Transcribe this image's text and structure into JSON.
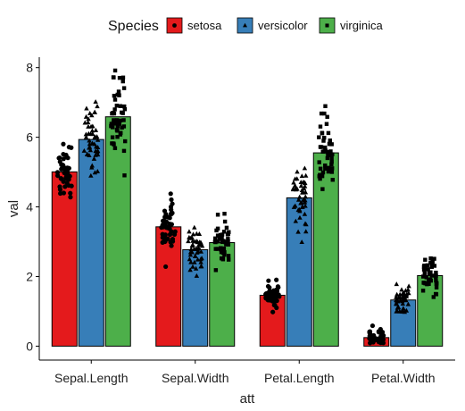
{
  "chart_data": {
    "type": "bar",
    "xlabel": "att",
    "ylabel": "val",
    "ylim": [
      -0.4,
      8.3
    ],
    "yticks": [
      0,
      2,
      4,
      6,
      8
    ],
    "categories": [
      "Sepal.Length",
      "Sepal.Width",
      "Petal.Length",
      "Petal.Width"
    ],
    "legend": {
      "title": "Species",
      "position": "top"
    },
    "series": [
      {
        "name": "setosa",
        "color": "#E41A1C",
        "marker": "circle",
        "values": [
          5.006,
          3.428,
          1.462,
          0.246
        ]
      },
      {
        "name": "versicolor",
        "color": "#377EB8",
        "marker": "triangle",
        "values": [
          5.936,
          2.77,
          4.26,
          1.326
        ]
      },
      {
        "name": "virginica",
        "color": "#4DAF4A",
        "marker": "square",
        "values": [
          6.588,
          2.974,
          5.552,
          2.026
        ]
      }
    ],
    "points_note": "jittered individual observations overlaid on each bar",
    "points": {
      "setosa": [
        [
          5.1,
          4.9,
          4.7,
          4.6,
          5.0,
          5.4,
          4.6,
          5.0,
          4.4,
          4.9,
          5.4,
          4.8,
          4.8,
          4.3,
          5.8,
          5.7,
          5.4,
          5.1,
          5.7,
          5.1,
          5.4,
          5.1,
          4.6,
          5.1,
          4.8,
          5.0,
          5.0,
          5.2,
          5.2,
          4.7,
          4.8,
          5.4,
          5.2,
          5.5,
          4.9,
          5.0,
          5.5,
          4.9,
          4.4,
          5.1,
          5.0,
          4.5,
          4.4,
          5.0,
          5.1,
          4.8,
          5.1,
          4.6,
          5.3,
          5.0
        ],
        [
          3.5,
          3.0,
          3.2,
          3.1,
          3.6,
          3.9,
          3.4,
          3.4,
          2.9,
          3.1,
          3.7,
          3.4,
          3.0,
          3.0,
          4.0,
          4.4,
          3.9,
          3.5,
          3.8,
          3.8,
          3.4,
          3.7,
          3.6,
          3.3,
          3.4,
          3.0,
          3.4,
          3.5,
          3.4,
          3.2,
          3.1,
          3.4,
          4.1,
          4.2,
          3.1,
          3.2,
          3.5,
          3.6,
          3.0,
          3.4,
          3.5,
          2.3,
          3.2,
          3.5,
          3.8,
          3.0,
          3.8,
          3.2,
          3.7,
          3.3
        ],
        [
          1.4,
          1.4,
          1.3,
          1.5,
          1.4,
          1.7,
          1.4,
          1.5,
          1.4,
          1.5,
          1.5,
          1.6,
          1.4,
          1.1,
          1.2,
          1.5,
          1.3,
          1.4,
          1.7,
          1.5,
          1.7,
          1.5,
          1.0,
          1.7,
          1.9,
          1.6,
          1.6,
          1.5,
          1.4,
          1.6,
          1.6,
          1.5,
          1.5,
          1.4,
          1.5,
          1.2,
          1.3,
          1.4,
          1.3,
          1.5,
          1.3,
          1.3,
          1.3,
          1.6,
          1.9,
          1.4,
          1.6,
          1.4,
          1.5,
          1.4
        ],
        [
          0.2,
          0.2,
          0.2,
          0.2,
          0.2,
          0.4,
          0.3,
          0.2,
          0.2,
          0.1,
          0.2,
          0.2,
          0.1,
          0.1,
          0.2,
          0.4,
          0.4,
          0.3,
          0.3,
          0.3,
          0.2,
          0.4,
          0.2,
          0.5,
          0.2,
          0.2,
          0.4,
          0.2,
          0.2,
          0.2,
          0.2,
          0.4,
          0.1,
          0.2,
          0.2,
          0.2,
          0.2,
          0.1,
          0.2,
          0.2,
          0.3,
          0.3,
          0.2,
          0.6,
          0.4,
          0.3,
          0.2,
          0.2,
          0.2,
          0.2
        ]
      ],
      "versicolor": [
        [
          7.0,
          6.4,
          6.9,
          5.5,
          6.5,
          5.7,
          6.3,
          4.9,
          6.6,
          5.2,
          5.0,
          5.9,
          6.0,
          6.1,
          5.6,
          6.7,
          5.6,
          5.8,
          6.2,
          5.6,
          5.9,
          6.1,
          6.3,
          6.1,
          6.4,
          6.6,
          6.8,
          6.7,
          6.0,
          5.7,
          5.5,
          5.5,
          5.8,
          6.0,
          5.4,
          6.0,
          6.7,
          6.3,
          5.6,
          5.5,
          5.5,
          6.1,
          5.8,
          5.0,
          5.6,
          5.7,
          5.7,
          6.2,
          5.1,
          5.7
        ],
        [
          3.2,
          3.2,
          3.1,
          2.3,
          2.8,
          2.8,
          3.3,
          2.4,
          2.9,
          2.7,
          2.0,
          3.0,
          2.2,
          2.9,
          2.9,
          3.1,
          3.0,
          2.7,
          2.2,
          2.5,
          3.2,
          2.8,
          2.5,
          2.8,
          2.9,
          3.0,
          2.8,
          3.0,
          2.9,
          2.6,
          2.4,
          2.4,
          2.7,
          2.7,
          3.0,
          3.4,
          3.1,
          2.3,
          3.0,
          2.5,
          2.6,
          3.0,
          2.6,
          2.3,
          2.7,
          3.0,
          2.9,
          2.9,
          2.5,
          2.8
        ],
        [
          4.7,
          4.5,
          4.9,
          4.0,
          4.6,
          4.5,
          4.7,
          3.3,
          4.6,
          3.9,
          3.5,
          4.2,
          4.0,
          4.7,
          3.6,
          4.4,
          4.5,
          4.1,
          4.5,
          3.9,
          4.8,
          4.0,
          4.9,
          4.7,
          4.3,
          4.4,
          4.8,
          5.0,
          4.5,
          3.5,
          3.8,
          3.7,
          3.9,
          5.1,
          4.5,
          4.5,
          4.7,
          4.4,
          4.1,
          4.0,
          4.4,
          4.6,
          4.0,
          3.3,
          4.2,
          4.2,
          4.2,
          4.3,
          3.0,
          4.1
        ],
        [
          1.4,
          1.5,
          1.5,
          1.3,
          1.5,
          1.3,
          1.6,
          1.0,
          1.3,
          1.4,
          1.0,
          1.5,
          1.0,
          1.4,
          1.3,
          1.4,
          1.5,
          1.0,
          1.5,
          1.1,
          1.8,
          1.3,
          1.5,
          1.2,
          1.3,
          1.4,
          1.4,
          1.7,
          1.5,
          1.0,
          1.1,
          1.0,
          1.2,
          1.6,
          1.5,
          1.6,
          1.5,
          1.3,
          1.3,
          1.3,
          1.2,
          1.4,
          1.2,
          1.0,
          1.3,
          1.2,
          1.3,
          1.3,
          1.1,
          1.3
        ]
      ],
      "virginica": [
        [
          6.3,
          5.8,
          7.1,
          6.3,
          6.5,
          7.6,
          4.9,
          7.3,
          6.7,
          7.2,
          6.5,
          6.4,
          6.8,
          5.7,
          5.8,
          6.4,
          6.5,
          7.7,
          7.7,
          6.0,
          6.9,
          5.6,
          7.7,
          6.3,
          6.7,
          7.2,
          6.2,
          6.1,
          6.4,
          7.2,
          7.4,
          7.9,
          6.4,
          6.3,
          6.1,
          7.7,
          6.3,
          6.4,
          6.0,
          6.9,
          6.7,
          6.9,
          5.8,
          6.8,
          6.7,
          6.7,
          6.3,
          6.5,
          6.2,
          5.9
        ],
        [
          3.3,
          2.7,
          3.0,
          2.9,
          3.0,
          3.0,
          2.5,
          2.9,
          2.5,
          3.6,
          3.2,
          2.7,
          3.0,
          2.5,
          2.8,
          3.2,
          3.0,
          3.8,
          2.6,
          2.2,
          3.2,
          2.8,
          2.8,
          2.7,
          3.3,
          3.2,
          2.8,
          3.0,
          2.8,
          3.0,
          2.8,
          3.8,
          2.8,
          2.8,
          2.6,
          3.0,
          3.4,
          3.1,
          3.0,
          3.1,
          3.1,
          3.1,
          2.7,
          3.2,
          3.3,
          3.0,
          2.5,
          3.0,
          3.4,
          3.0
        ],
        [
          6.0,
          5.1,
          5.9,
          5.6,
          5.8,
          6.6,
          4.5,
          6.3,
          5.8,
          6.1,
          5.1,
          5.3,
          5.5,
          5.0,
          5.1,
          5.3,
          5.5,
          6.7,
          6.9,
          5.0,
          5.7,
          4.9,
          6.7,
          4.9,
          5.7,
          6.0,
          4.8,
          4.9,
          5.6,
          5.8,
          6.1,
          6.4,
          5.6,
          5.1,
          5.6,
          6.1,
          5.6,
          5.5,
          4.8,
          5.4,
          5.6,
          5.1,
          5.1,
          5.9,
          5.7,
          5.2,
          5.0,
          5.2,
          5.4,
          5.1
        ],
        [
          2.5,
          1.9,
          2.1,
          1.8,
          2.2,
          2.1,
          1.7,
          1.8,
          1.8,
          2.5,
          2.0,
          1.9,
          2.1,
          2.0,
          2.4,
          2.3,
          1.8,
          2.2,
          2.3,
          1.5,
          2.3,
          2.0,
          2.0,
          1.8,
          2.1,
          1.8,
          1.8,
          1.8,
          2.1,
          1.6,
          1.9,
          2.0,
          2.2,
          1.5,
          1.4,
          2.3,
          2.4,
          1.8,
          1.8,
          2.1,
          2.4,
          2.3,
          1.9,
          2.3,
          2.5,
          2.3,
          1.9,
          2.0,
          2.3,
          1.8
        ]
      ]
    }
  }
}
